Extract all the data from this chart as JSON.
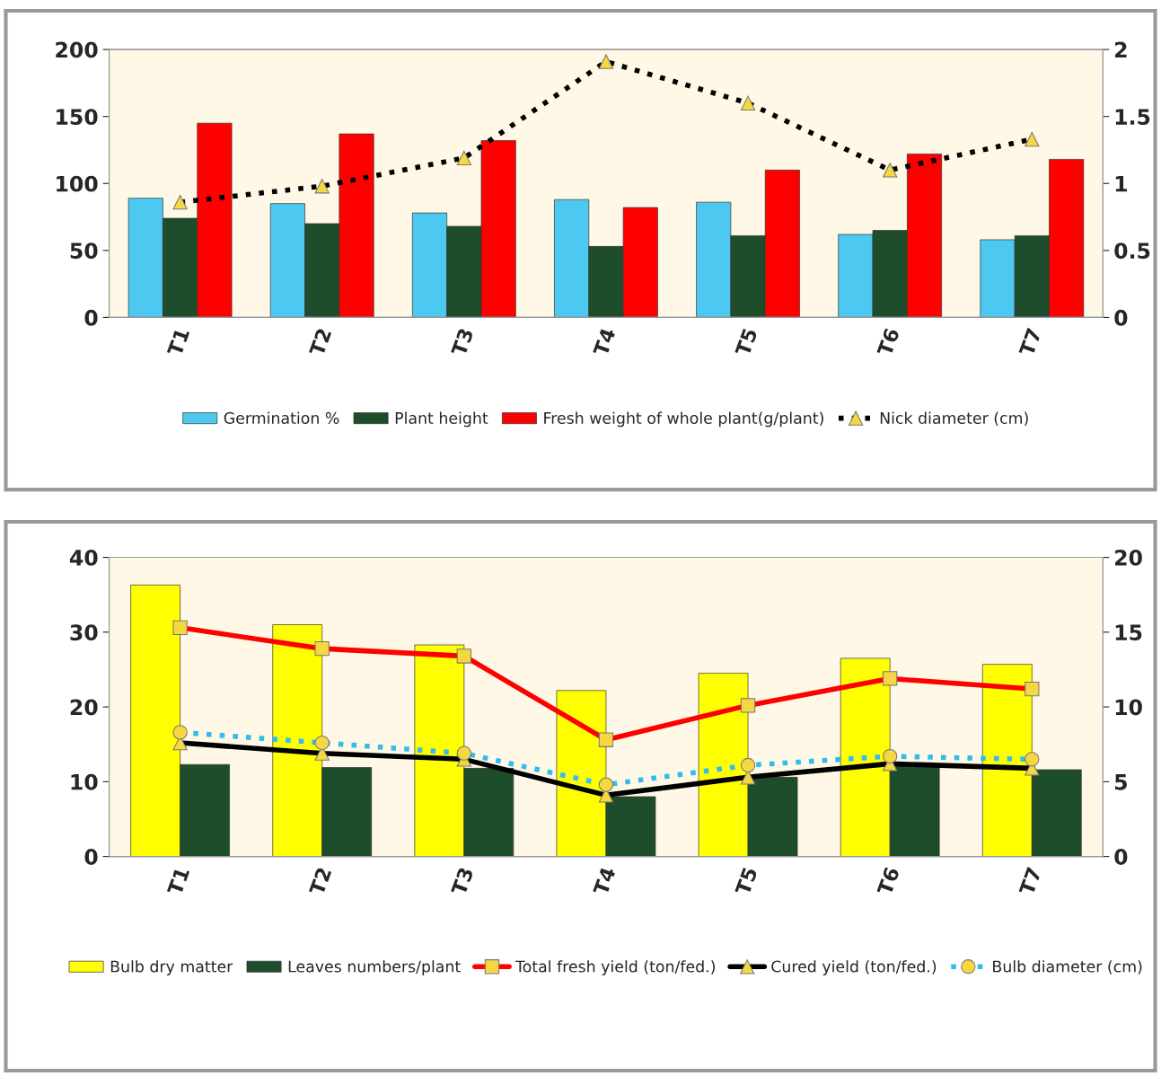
{
  "chart_data": [
    {
      "type": "bar",
      "categories": [
        "T1",
        "T2",
        "T3",
        "T4",
        "T5",
        "T6",
        "T7"
      ],
      "series": [
        {
          "name": "Germination %",
          "color": "#4dc8f0",
          "values": [
            89,
            85,
            78,
            88,
            86,
            62,
            58
          ]
        },
        {
          "name": "Plant height",
          "color": "#1e4d2b",
          "values": [
            74,
            70,
            68,
            53,
            61,
            65,
            61
          ]
        },
        {
          "name": "Fresh weight of whole plant(g/plant)",
          "color": "#ff0000",
          "values": [
            145,
            137,
            132,
            82,
            110,
            122,
            118
          ]
        },
        {
          "name": "Nick diameter (cm)",
          "type": "line",
          "axis": "y2",
          "color": "#000000",
          "line_style": "dotted",
          "marker": "triangle",
          "values": [
            0.86,
            0.98,
            1.19,
            1.91,
            1.6,
            1.1,
            1.33
          ]
        }
      ],
      "ylim": [
        0,
        200
      ],
      "yticks": [
        0,
        50,
        100,
        150,
        200
      ],
      "y2lim": [
        0,
        2
      ],
      "y2ticks": [
        0,
        0.5,
        1,
        1.5,
        2
      ],
      "grid": false,
      "legend": "bottom"
    },
    {
      "type": "bar",
      "categories": [
        "T1",
        "T2",
        "T3",
        "T4",
        "T5",
        "T6",
        "T7"
      ],
      "series": [
        {
          "name": "Bulb dry matter",
          "color": "#ffff00",
          "values": [
            36.3,
            31,
            28.3,
            22.2,
            24.5,
            26.5,
            25.7
          ]
        },
        {
          "name": "Leaves numbers/plant",
          "color": "#1e4d2b",
          "values": [
            12.3,
            11.9,
            11.8,
            8,
            10.6,
            12.3,
            11.6
          ]
        },
        {
          "name": "Total fresh yield (ton/fed.)",
          "type": "line",
          "axis": "y2",
          "color": "#ff0000",
          "line_style": "solid",
          "marker": "square",
          "values": [
            15.3,
            13.9,
            13.4,
            7.8,
            10.1,
            11.9,
            11.2
          ]
        },
        {
          "name": "Cured yield (ton/fed.)",
          "type": "line",
          "axis": "y2",
          "color": "#000000",
          "line_style": "solid",
          "marker": "triangle",
          "values": [
            7.6,
            6.9,
            6.5,
            4.1,
            5.3,
            6.2,
            5.9
          ]
        },
        {
          "name": "Bulb diameter (cm)",
          "type": "line",
          "axis": "y2",
          "color": "#33bbee",
          "line_style": "dotted",
          "marker": "circle",
          "values": [
            8.3,
            7.6,
            6.9,
            4.8,
            6.1,
            6.7,
            6.5
          ]
        }
      ],
      "ylim": [
        0,
        40
      ],
      "yticks": [
        0,
        10,
        20,
        30,
        40
      ],
      "y2lim": [
        0,
        20
      ],
      "y2ticks": [
        0,
        5,
        10,
        15,
        20
      ],
      "grid": false,
      "legend": "bottom"
    }
  ]
}
